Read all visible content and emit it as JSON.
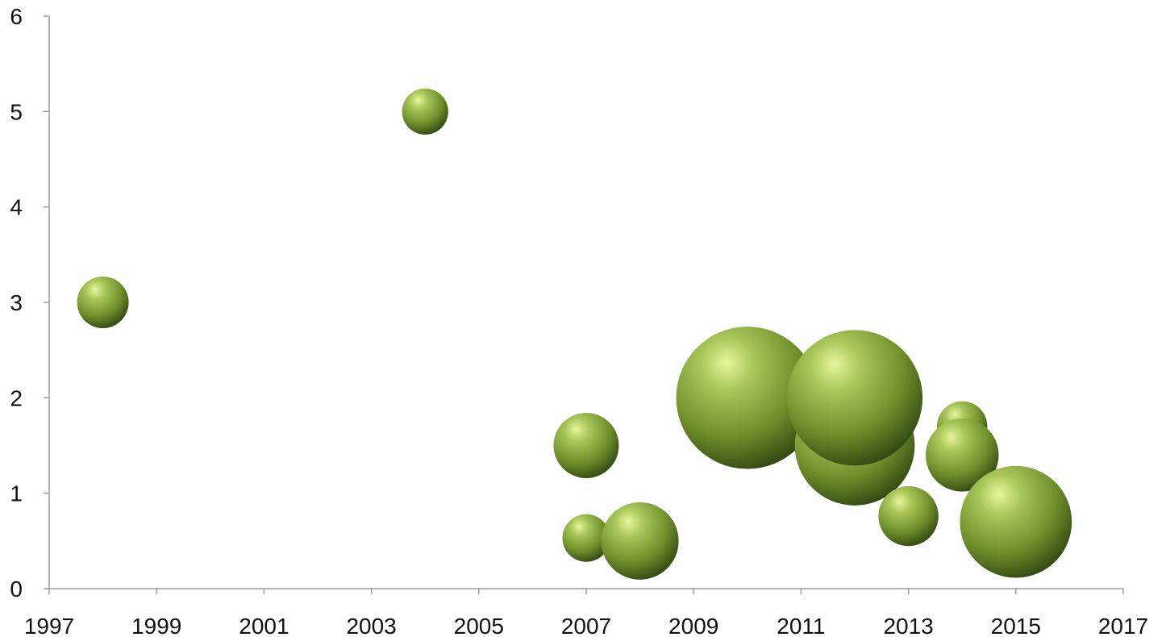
{
  "chart_data": {
    "type": "bubble",
    "title": "",
    "xlabel": "",
    "ylabel": "",
    "xlim": [
      1997,
      2017
    ],
    "ylim": [
      0,
      6
    ],
    "x_ticks": [
      "1997",
      "1999",
      "2001",
      "2003",
      "2005",
      "2007",
      "2009",
      "2011",
      "2013",
      "2015",
      "2017"
    ],
    "y_ticks": [
      "0",
      "1",
      "2",
      "3",
      "4",
      "5",
      "6"
    ],
    "grid": false,
    "legend": "none",
    "color": "#6e8f2a",
    "highlight_color": "#d9f28a",
    "shadow_color": "#2f4410",
    "series": [
      {
        "points": [
          {
            "x": 1998,
            "y": 3.0,
            "size": 1.0
          },
          {
            "x": 2004,
            "y": 5.0,
            "size": 0.8
          },
          {
            "x": 2007,
            "y": 1.5,
            "size": 1.6
          },
          {
            "x": 2007,
            "y": 0.53,
            "size": 0.85
          },
          {
            "x": 2008,
            "y": 0.5,
            "size": 2.25
          },
          {
            "x": 2010,
            "y": 2.0,
            "size": 7.6
          },
          {
            "x": 2012,
            "y": 1.5,
            "size": 5.4
          },
          {
            "x": 2012,
            "y": 2.0,
            "size": 6.9
          },
          {
            "x": 2013,
            "y": 0.76,
            "size": 1.35
          },
          {
            "x": 2014,
            "y": 1.7,
            "size": 0.95
          },
          {
            "x": 2014,
            "y": 1.4,
            "size": 2.0
          },
          {
            "x": 2015,
            "y": 0.7,
            "size": 4.7
          }
        ]
      }
    ]
  }
}
